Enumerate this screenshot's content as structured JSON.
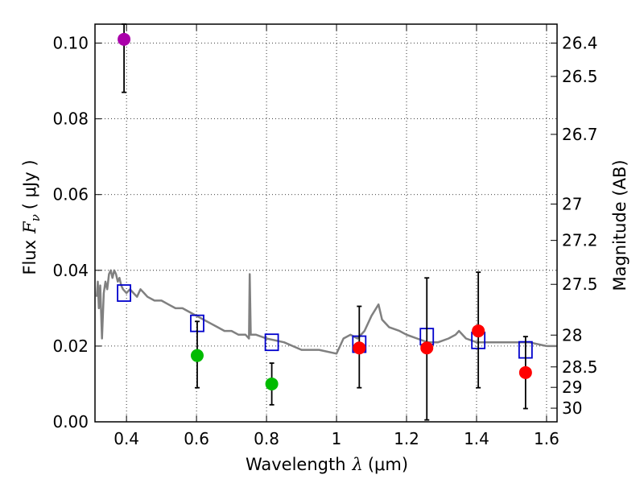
{
  "chart_data": {
    "type": "scatter",
    "xlabel": "Wavelength",
    "xlabel_symbol": "λ",
    "xlabel_unit": "(μm)",
    "ylabel": "Flux",
    "ylabel_symbol": "F",
    "ylabel_subscript": "ν",
    "ylabel_unit": "( μJy )",
    "y2label": "Magnitude (AB)",
    "xlim": [
      0.31,
      1.63
    ],
    "ylim": [
      0.0,
      0.105
    ],
    "grid": true,
    "x_ticks": [
      0.4,
      0.6,
      0.8,
      1.0,
      1.2,
      1.4,
      1.6
    ],
    "x_tick_labels": [
      "0.4",
      "0.6",
      "0.8",
      "1",
      "1.2",
      "1.4",
      "1.6"
    ],
    "y_ticks": [
      0.0,
      0.02,
      0.04,
      0.06,
      0.08,
      0.1
    ],
    "y_tick_labels": [
      "0.00",
      "0.02",
      "0.04",
      "0.06",
      "0.08",
      "0.10"
    ],
    "magnitude_ticks": [
      {
        "label": "26.4",
        "flux": 0.1
      },
      {
        "label": "26.5",
        "flux": 0.0912
      },
      {
        "label": "26.7",
        "flux": 0.0759
      },
      {
        "label": "27",
        "flux": 0.0575
      },
      {
        "label": "27.2",
        "flux": 0.0479
      },
      {
        "label": "27.5",
        "flux": 0.0363
      },
      {
        "label": "28",
        "flux": 0.0229
      },
      {
        "label": "28.5",
        "flux": 0.0145
      },
      {
        "label": "29",
        "flux": 0.0091
      },
      {
        "label": "30",
        "flux": 0.0036
      }
    ],
    "series": [
      {
        "name": "model-sed",
        "kind": "line",
        "color": "#808080",
        "points": [
          [
            0.315,
            0.033
          ],
          [
            0.318,
            0.037
          ],
          [
            0.321,
            0.03
          ],
          [
            0.325,
            0.036
          ],
          [
            0.33,
            0.022
          ],
          [
            0.335,
            0.034
          ],
          [
            0.34,
            0.037
          ],
          [
            0.345,
            0.035
          ],
          [
            0.35,
            0.039
          ],
          [
            0.355,
            0.04
          ],
          [
            0.36,
            0.038
          ],
          [
            0.365,
            0.04
          ],
          [
            0.37,
            0.039
          ],
          [
            0.375,
            0.037
          ],
          [
            0.38,
            0.038
          ],
          [
            0.385,
            0.036
          ],
          [
            0.39,
            0.035
          ],
          [
            0.4,
            0.034
          ],
          [
            0.41,
            0.035
          ],
          [
            0.42,
            0.034
          ],
          [
            0.43,
            0.033
          ],
          [
            0.44,
            0.035
          ],
          [
            0.45,
            0.034
          ],
          [
            0.46,
            0.033
          ],
          [
            0.48,
            0.032
          ],
          [
            0.5,
            0.032
          ],
          [
            0.52,
            0.031
          ],
          [
            0.54,
            0.03
          ],
          [
            0.56,
            0.03
          ],
          [
            0.58,
            0.029
          ],
          [
            0.6,
            0.028
          ],
          [
            0.62,
            0.027
          ],
          [
            0.64,
            0.026
          ],
          [
            0.66,
            0.025
          ],
          [
            0.68,
            0.024
          ],
          [
            0.7,
            0.024
          ],
          [
            0.72,
            0.023
          ],
          [
            0.74,
            0.023
          ],
          [
            0.75,
            0.022
          ],
          [
            0.752,
            0.039
          ],
          [
            0.755,
            0.023
          ],
          [
            0.77,
            0.023
          ],
          [
            0.8,
            0.022
          ],
          [
            0.85,
            0.021
          ],
          [
            0.9,
            0.019
          ],
          [
            0.95,
            0.019
          ],
          [
            1.0,
            0.018
          ],
          [
            1.01,
            0.02
          ],
          [
            1.02,
            0.022
          ],
          [
            1.04,
            0.023
          ],
          [
            1.06,
            0.022
          ],
          [
            1.08,
            0.024
          ],
          [
            1.1,
            0.028
          ],
          [
            1.12,
            0.031
          ],
          [
            1.13,
            0.027
          ],
          [
            1.15,
            0.025
          ],
          [
            1.18,
            0.024
          ],
          [
            1.2,
            0.023
          ],
          [
            1.23,
            0.022
          ],
          [
            1.26,
            0.021
          ],
          [
            1.29,
            0.021
          ],
          [
            1.32,
            0.022
          ],
          [
            1.34,
            0.023
          ],
          [
            1.35,
            0.024
          ],
          [
            1.37,
            0.022
          ],
          [
            1.4,
            0.021
          ],
          [
            1.43,
            0.021
          ],
          [
            1.46,
            0.021
          ],
          [
            1.5,
            0.021
          ],
          [
            1.55,
            0.021
          ],
          [
            1.6,
            0.02
          ],
          [
            1.63,
            0.02
          ]
        ]
      },
      {
        "name": "model-photometry",
        "kind": "square",
        "color": "#0000cc",
        "points": [
          [
            0.393,
            0.034
          ],
          [
            0.602,
            0.026
          ],
          [
            0.815,
            0.021
          ],
          [
            1.065,
            0.0205
          ],
          [
            1.258,
            0.0225
          ],
          [
            1.405,
            0.0215
          ],
          [
            1.54,
            0.019
          ]
        ]
      },
      {
        "name": "observed-red",
        "kind": "circle",
        "color": "#ff0000",
        "points": [
          [
            1.065,
            0.0195,
            0.009,
            0.0305
          ],
          [
            1.258,
            0.0195,
            0.0005,
            0.038
          ],
          [
            1.405,
            0.024,
            0.009,
            0.0395
          ],
          [
            1.54,
            0.013,
            0.0035,
            0.0225
          ]
        ]
      },
      {
        "name": "observed-green",
        "kind": "circle",
        "color": "#00bb00",
        "points": [
          [
            0.602,
            0.0175,
            0.009,
            0.0265
          ],
          [
            0.815,
            0.01,
            0.0045,
            0.0155
          ]
        ]
      },
      {
        "name": "observed-purple",
        "kind": "circle",
        "color": "#aa00aa",
        "points": [
          [
            0.393,
            0.101,
            0.087,
            0.105
          ]
        ]
      }
    ]
  }
}
